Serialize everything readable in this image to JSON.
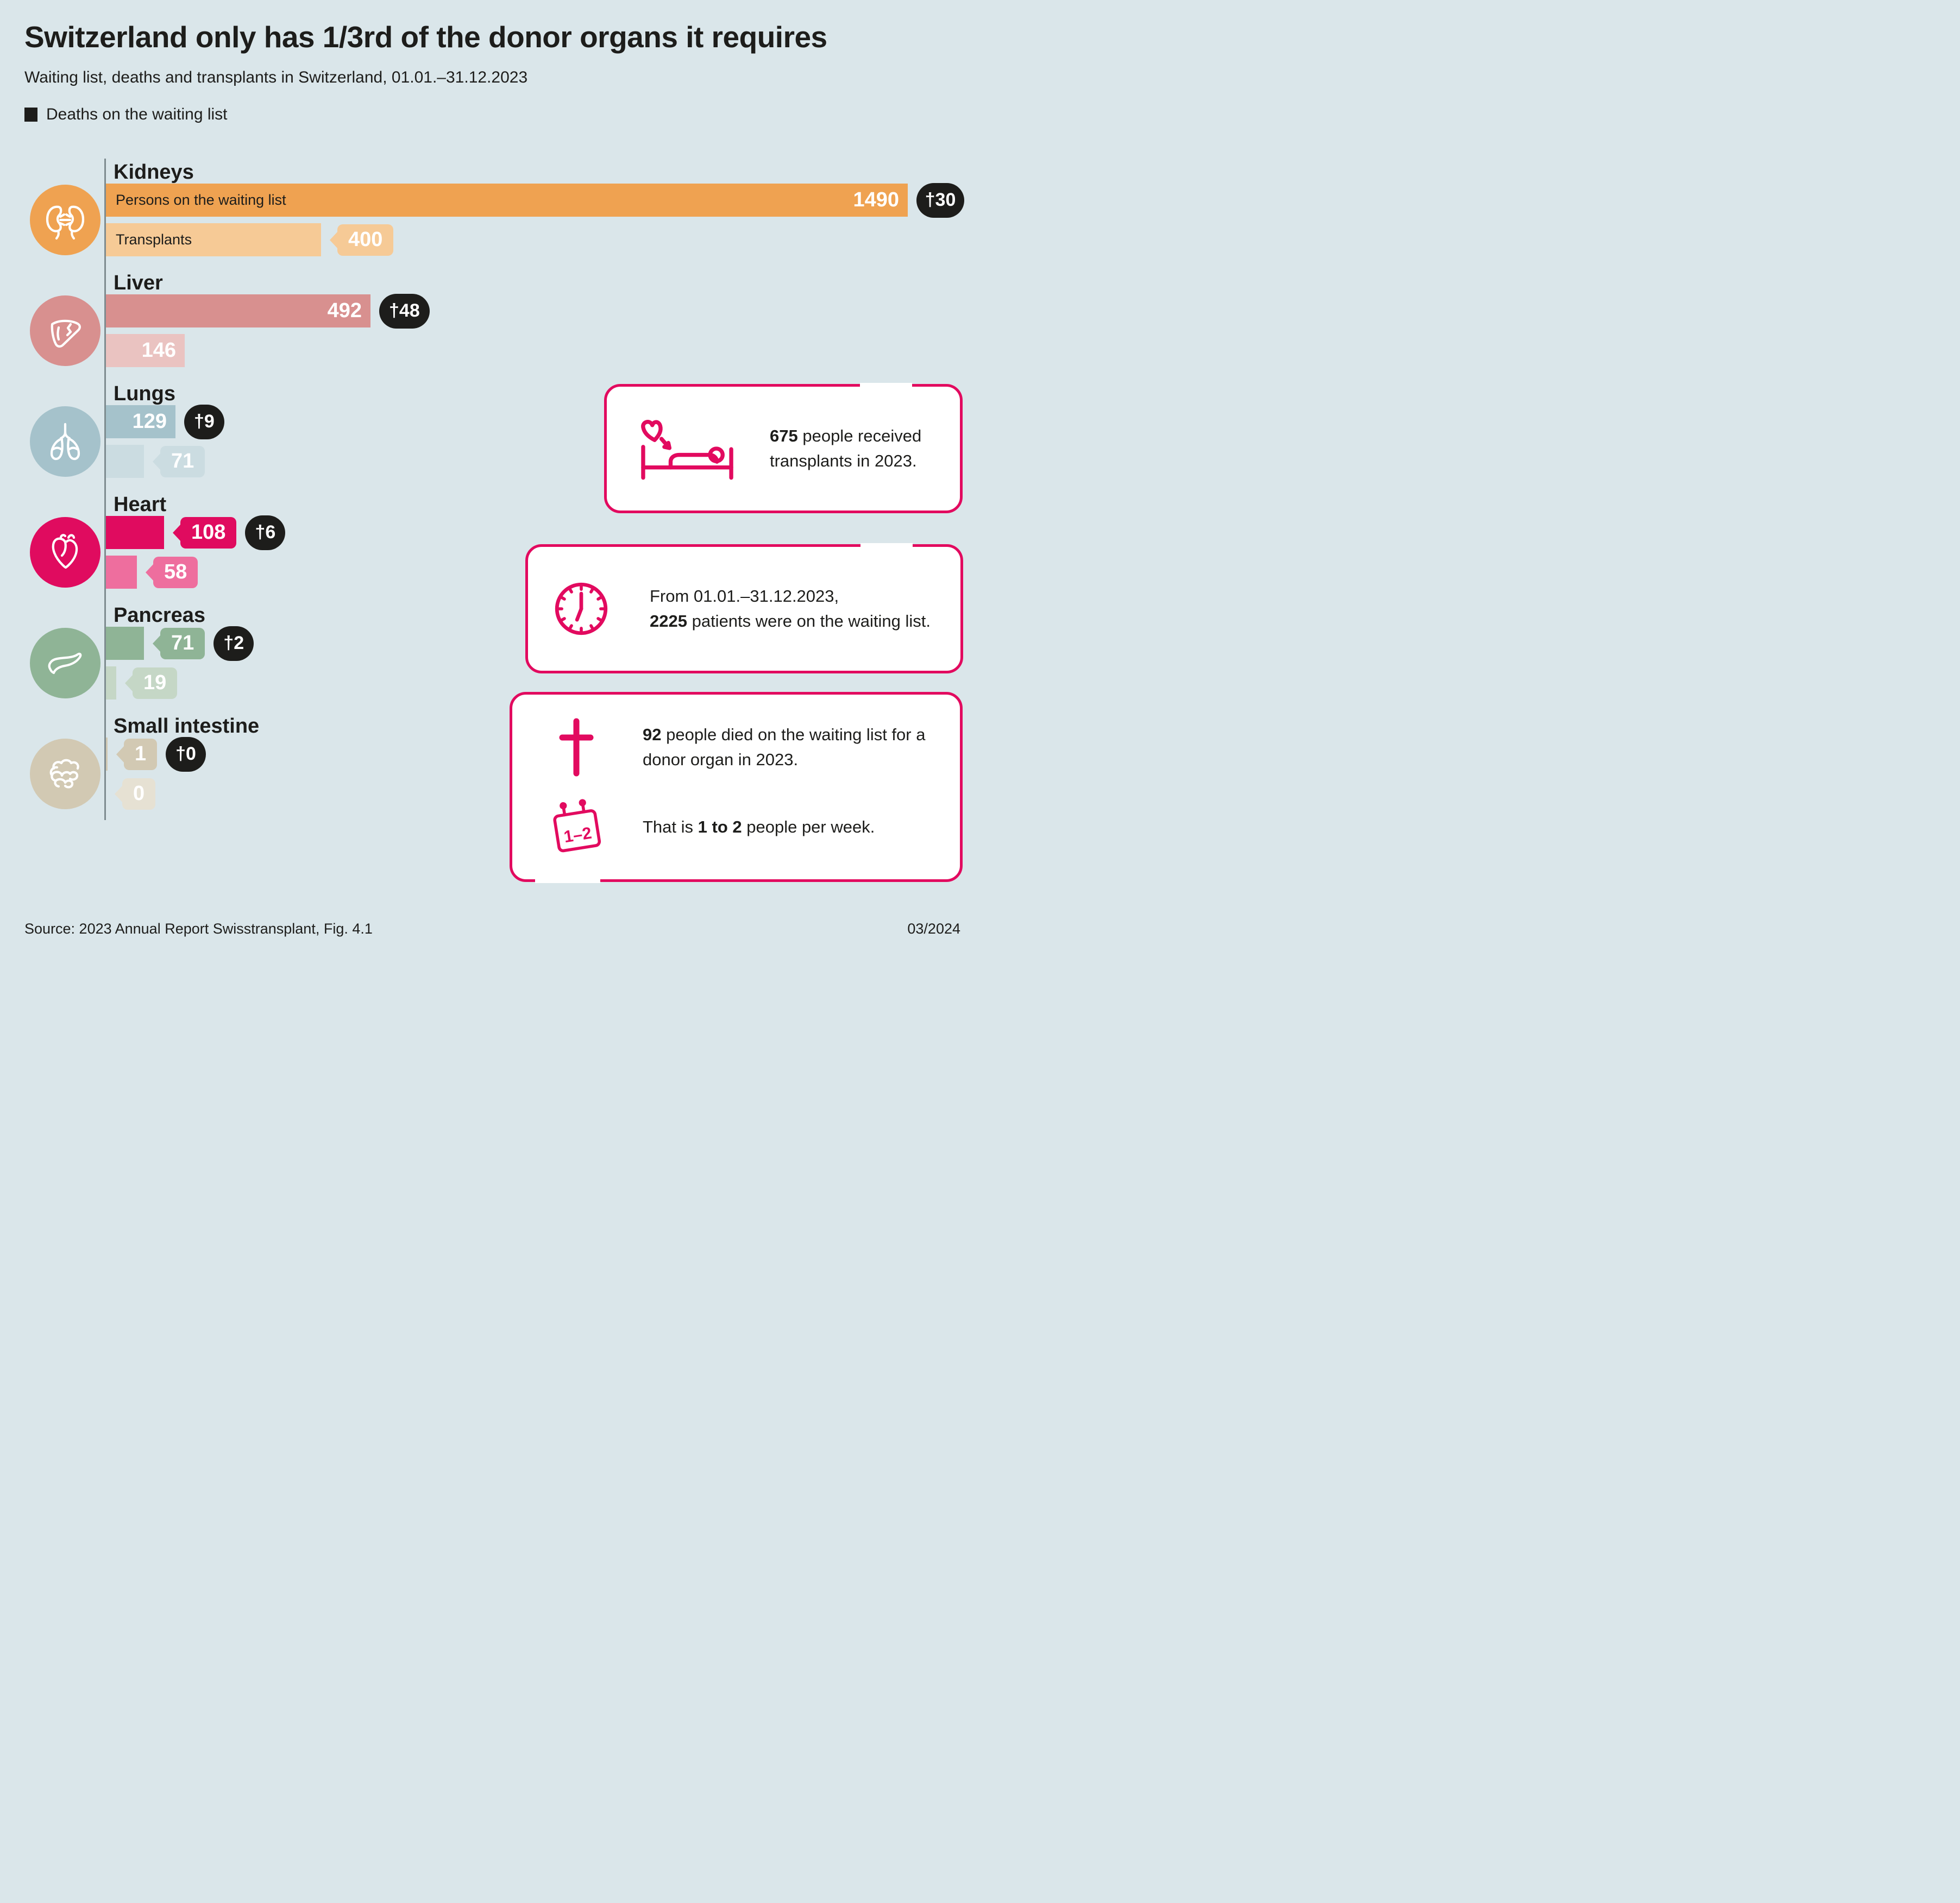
{
  "header": {
    "title": "Switzerland only has 1/3rd of the donor organs it requires",
    "subtitle": "Waiting list, deaths and transplants in Switzerland, 01.01.–31.12.2023",
    "legend_label": "Deaths on the waiting list"
  },
  "chart_data": {
    "type": "bar",
    "orientation": "horizontal",
    "x_max": 1490,
    "grid": false,
    "legend": [
      "Deaths on the waiting list"
    ],
    "legend_position": "top-left",
    "series_labels": {
      "waiting": "Persons on the waiting list",
      "transplants": "Transplants"
    },
    "death_badge_prefix": "†",
    "badge_color": "#1d1d1b",
    "axis_color": "#7e8c90",
    "organs": [
      {
        "name": "Kidneys",
        "icon": "kidneys-icon",
        "waiting": 1490,
        "deaths": 30,
        "transplants": 400,
        "color_waiting": "#efa251",
        "color_transplants": "#f6ca96",
        "waiting_value_display": "inside",
        "transplants_value_display": "tag",
        "show_series_labels": true
      },
      {
        "name": "Liver",
        "icon": "liver-icon",
        "waiting": 492,
        "deaths": 48,
        "transplants": 146,
        "color_waiting": "#d8908f",
        "color_transplants": "#eac3c1",
        "waiting_value_display": "inside",
        "transplants_value_display": "inside",
        "show_series_labels": false
      },
      {
        "name": "Lungs",
        "icon": "lungs-icon",
        "waiting": 129,
        "deaths": 9,
        "transplants": 71,
        "color_waiting": "#a5c2cb",
        "color_transplants": "#cbdce1",
        "waiting_value_display": "inside",
        "transplants_value_display": "tag",
        "show_series_labels": false
      },
      {
        "name": "Heart",
        "icon": "heart-icon",
        "waiting": 108,
        "deaths": 6,
        "transplants": 58,
        "color_waiting": "#e00b5f",
        "color_transplants": "#ee6e9e",
        "waiting_value_display": "tag",
        "transplants_value_display": "tag",
        "show_series_labels": false
      },
      {
        "name": "Pancreas",
        "icon": "pancreas-icon",
        "waiting": 71,
        "deaths": 2,
        "transplants": 19,
        "color_waiting": "#8fb496",
        "color_transplants": "#c5d7c6",
        "waiting_value_display": "tag",
        "transplants_value_display": "tag",
        "show_series_labels": false
      },
      {
        "name": "Small intestine",
        "icon": "small-intestine-icon",
        "waiting": 1,
        "deaths": 0,
        "transplants": 0,
        "color_waiting": "#d2c9b3",
        "color_transplants": "#e6e1d3",
        "waiting_value_display": "tag",
        "transplants_value_display": "tag",
        "show_series_labels": false
      }
    ]
  },
  "callouts": {
    "transplants": {
      "icon": "heart-to-bed-icon",
      "bold_text": "675",
      "rest_text": " people received transplants in 2023."
    },
    "waiting": {
      "icon": "clock-icon",
      "line1": "From 01.01.–31.12.2023,",
      "bold_text": "2225",
      "rest_text": " patients were on the waiting list."
    },
    "deaths": {
      "icon_row1": "cross-icon",
      "icon_row2": "calendar-icon",
      "calendar_label": "1–2",
      "row1_bold": "92",
      "row1_rest": " people died on the waiting list for a donor organ in 2023.",
      "row2_pre": "That is ",
      "row2_bold": "1 to 2",
      "row2_rest": " people per week."
    }
  },
  "footer": {
    "source": "Source: 2023 Annual Report Swisstransplant, Fig. 4.1",
    "date": "03/2024"
  },
  "colors": {
    "background": "#dae6ea",
    "accent_pink": "#e20a5f",
    "text": "#1d1d1b"
  }
}
